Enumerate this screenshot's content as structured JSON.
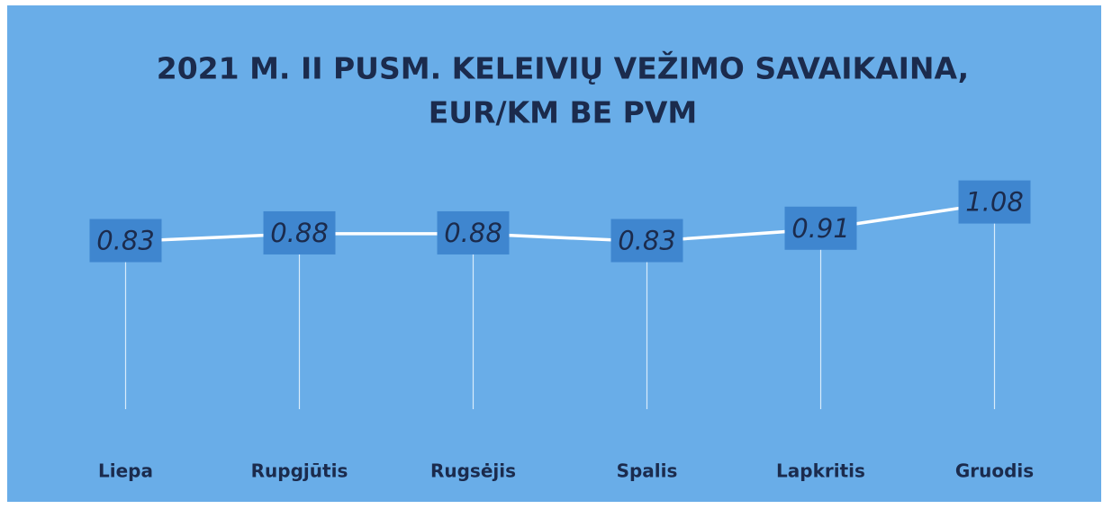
{
  "chart_data": {
    "type": "line",
    "title": [
      "2021 M. II PUSM. KELEIVIŲ VEŽIMO SAVAIKAINA,",
      "EUR/KM BE PVM"
    ],
    "categories": [
      "Liepa",
      "Rupgjūtis",
      "Rugsėjis",
      "Spalis",
      "Lapkritis",
      "Gruodis"
    ],
    "values": [
      0.83,
      0.88,
      0.88,
      0.83,
      0.91,
      1.08
    ],
    "color": "#ffffff",
    "ylim": [
      0,
      1.2
    ],
    "grid": false
  }
}
